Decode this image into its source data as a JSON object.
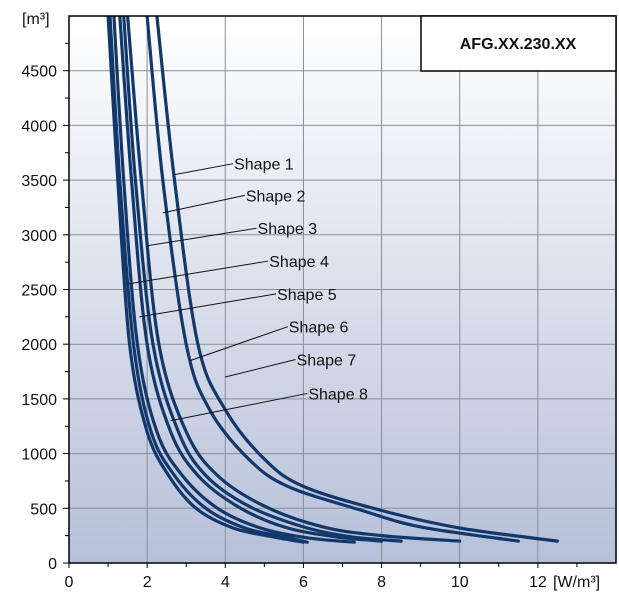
{
  "chart_data": {
    "type": "line",
    "title": "AFG.XX.230.XX",
    "xlabel": "[W/m³]",
    "ylabel": "[m³]",
    "xlim": [
      0,
      14
    ],
    "ylim": [
      0,
      5000
    ],
    "x_ticks": [
      "0",
      "2",
      "4",
      "6",
      "8",
      "10",
      "12"
    ],
    "y_ticks": [
      "0",
      "500",
      "1000",
      "1500",
      "2000",
      "2500",
      "3000",
      "3500",
      "4000",
      "4500"
    ],
    "grid": true,
    "series": [
      {
        "name": "Shape 1",
        "points": [
          [
            2.25,
            5000
          ],
          [
            2.7,
            3500
          ],
          [
            3.3,
            2000
          ],
          [
            4.0,
            1400
          ],
          [
            5.0,
            950
          ],
          [
            6.0,
            700
          ],
          [
            8.0,
            480
          ],
          [
            10.0,
            320
          ],
          [
            12.5,
            200
          ]
        ]
      },
      {
        "name": "Shape 2",
        "points": [
          [
            2.0,
            5000
          ],
          [
            2.4,
            3500
          ],
          [
            3.0,
            2000
          ],
          [
            3.6,
            1400
          ],
          [
            4.6,
            950
          ],
          [
            5.6,
            700
          ],
          [
            7.5,
            480
          ],
          [
            9.0,
            330
          ],
          [
            11.5,
            200
          ]
        ]
      },
      {
        "name": "Shape 3",
        "points": [
          [
            1.5,
            5000
          ],
          [
            1.85,
            3500
          ],
          [
            2.3,
            2000
          ],
          [
            3.0,
            1200
          ],
          [
            3.8,
            800
          ],
          [
            5.0,
            520
          ],
          [
            6.5,
            330
          ],
          [
            8.0,
            250
          ],
          [
            10.0,
            200
          ]
        ]
      },
      {
        "name": "Shape 4",
        "points": [
          [
            1.4,
            5000
          ],
          [
            1.7,
            3500
          ],
          [
            2.15,
            2000
          ],
          [
            2.8,
            1200
          ],
          [
            3.5,
            800
          ],
          [
            4.6,
            520
          ],
          [
            6.0,
            330
          ],
          [
            7.2,
            240
          ],
          [
            8.5,
            200
          ]
        ]
      },
      {
        "name": "Shape 5",
        "points": [
          [
            1.3,
            5000
          ],
          [
            1.6,
            3500
          ],
          [
            2.0,
            2000
          ],
          [
            2.6,
            1200
          ],
          [
            3.3,
            800
          ],
          [
            4.3,
            520
          ],
          [
            5.5,
            330
          ],
          [
            6.8,
            240
          ],
          [
            8.0,
            200
          ]
        ]
      },
      {
        "name": "Shape 6",
        "points": [
          [
            1.15,
            5000
          ],
          [
            1.4,
            3500
          ],
          [
            1.75,
            2000
          ],
          [
            2.25,
            1200
          ],
          [
            2.9,
            800
          ],
          [
            3.8,
            500
          ],
          [
            4.9,
            320
          ],
          [
            6.1,
            230
          ],
          [
            7.3,
            190
          ]
        ]
      },
      {
        "name": "Shape 7",
        "points": [
          [
            1.05,
            5000
          ],
          [
            1.3,
            3500
          ],
          [
            1.65,
            2000
          ],
          [
            2.1,
            1200
          ],
          [
            2.7,
            800
          ],
          [
            3.5,
            500
          ],
          [
            4.5,
            320
          ],
          [
            5.5,
            240
          ],
          [
            6.1,
            190
          ]
        ]
      },
      {
        "name": "Shape 8",
        "points": [
          [
            1.0,
            5000
          ],
          [
            1.25,
            3500
          ],
          [
            1.55,
            2000
          ],
          [
            2.0,
            1200
          ],
          [
            2.55,
            800
          ],
          [
            3.25,
            500
          ],
          [
            4.2,
            320
          ],
          [
            5.2,
            240
          ],
          [
            6.0,
            190
          ]
        ]
      }
    ],
    "label_x": [
      4.2,
      4.5,
      4.8,
      5.1,
      5.3,
      5.6,
      5.8,
      6.1
    ],
    "label_y": [
      3650,
      3360,
      3060,
      2760,
      2460,
      2160,
      1860,
      1550
    ],
    "anchor_x": [
      2.7,
      2.4,
      2.0,
      1.5,
      1.8,
      3.1,
      4.0,
      2.6
    ],
    "anchor_y": [
      3550,
      3200,
      2900,
      2550,
      2250,
      1850,
      1700,
      1300
    ],
    "colors": {
      "line": "#12386b",
      "leader": "#111111",
      "grid": "#8a8d99",
      "bg_top": "#ffffff",
      "bg_bottom": "#b6c0d8"
    }
  }
}
